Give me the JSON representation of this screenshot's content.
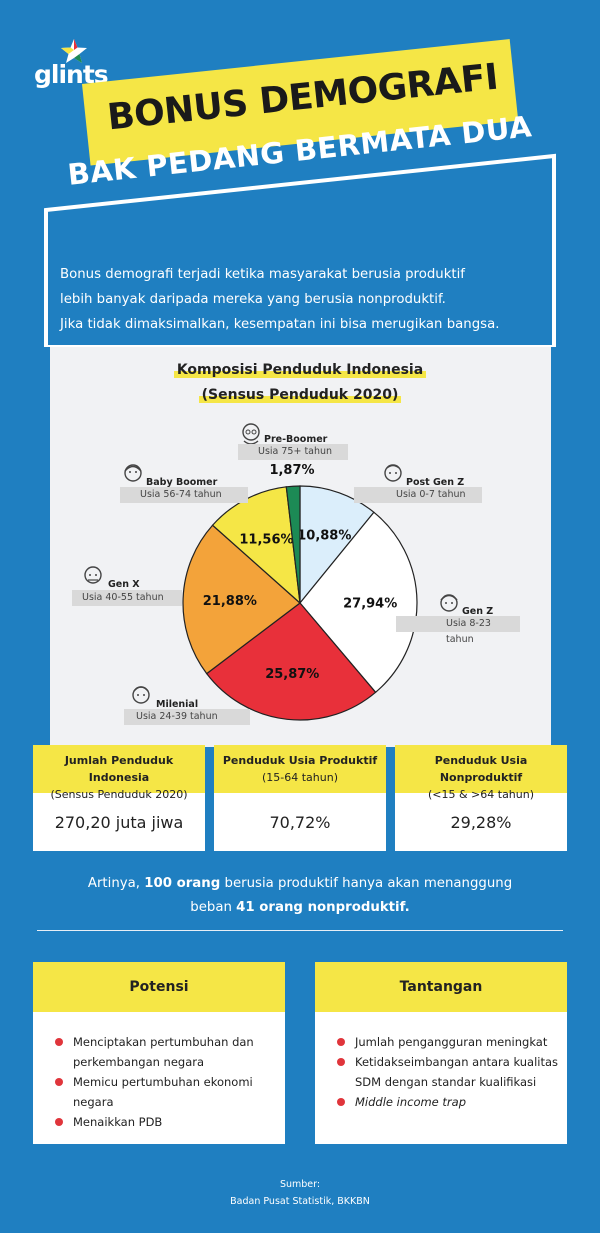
{
  "brand": {
    "name": "glints"
  },
  "title": {
    "line1": "BONUS DEMOGRAFI",
    "line2": "BAK PEDANG BERMATA DUA"
  },
  "intro": {
    "line1": "Bonus demografi terjadi ketika masyarakat berusia produktif",
    "line2": "lebih banyak daripada mereka yang berusia nonproduktif.",
    "line3": "Jika tidak dimaksimalkan, kesempatan ini bisa merugikan bangsa."
  },
  "chart_data": {
    "type": "pie",
    "title": "Komposisi Penduduk Indonesia",
    "subtitle": "(Sensus Penduduk 2020)",
    "slices": [
      {
        "name": "Post Gen Z",
        "range": "Usia 0-7 tahun",
        "value": 10.88,
        "label": "10,88%",
        "color": "#dbeefb"
      },
      {
        "name": "Gen Z",
        "range": "Usia 8-23 tahun",
        "value": 27.94,
        "label": "27,94%",
        "color": "#ffffff"
      },
      {
        "name": "Milenial",
        "range": "Usia 24-39 tahun",
        "value": 25.87,
        "label": "25,87%",
        "color": "#e8303a"
      },
      {
        "name": "Gen X",
        "range": "Usia 40-55 tahun",
        "value": 21.88,
        "label": "21,88%",
        "color": "#f3a33a"
      },
      {
        "name": "Baby Boomer",
        "range": "Usia 56-74 tahun",
        "value": 11.56,
        "label": "11,56%",
        "color": "#f5e646"
      },
      {
        "name": "Pre-Boomer",
        "range": "Usia 75+ tahun",
        "value": 1.87,
        "label": "1,87%",
        "color": "#1c8a55"
      }
    ]
  },
  "stats": [
    {
      "title": "Jumlah Penduduk Indonesia",
      "sub": "(Sensus Penduduk 2020)",
      "value": "270,20 juta jiwa"
    },
    {
      "title": "Penduduk Usia Produktif",
      "sub": "(15-64 tahun)",
      "value": "70,72%"
    },
    {
      "title": "Penduduk Usia Nonproduktif",
      "sub": "(<15 & >64 tahun)",
      "value": "29,28%"
    }
  ],
  "summary": {
    "p1": "Artinya, ",
    "b1": "100 orang",
    "p2": " berusia produktif hanya akan menanggung",
    "p3": "beban ",
    "b2": "41 orang nonproduktif."
  },
  "potensi": {
    "title": "Potensi",
    "items": [
      {
        "l1": "Menciptakan pertumbuhan dan",
        "l2": "perkembangan negara"
      },
      {
        "l1": "Memicu pertumbuhan ekonomi",
        "l2": "negara"
      },
      {
        "l1": "Menaikkan PDB",
        "l2": ""
      }
    ]
  },
  "tantangan": {
    "title": "Tantangan",
    "items": [
      {
        "l1": "Jumlah pengangguran meningkat",
        "l2": ""
      },
      {
        "l1": "Ketidakseimbangan antara kualitas",
        "l2": "SDM dengan standar kualifikasi"
      },
      {
        "l1": "Middle income trap",
        "l2": ""
      }
    ]
  },
  "source": {
    "label": "Sumber:",
    "text": "Badan Pusat Statistik, BKKBN"
  },
  "colors": {
    "background": "#1f7fc1",
    "accent": "#f5e646",
    "bullet": "#e0353b"
  }
}
